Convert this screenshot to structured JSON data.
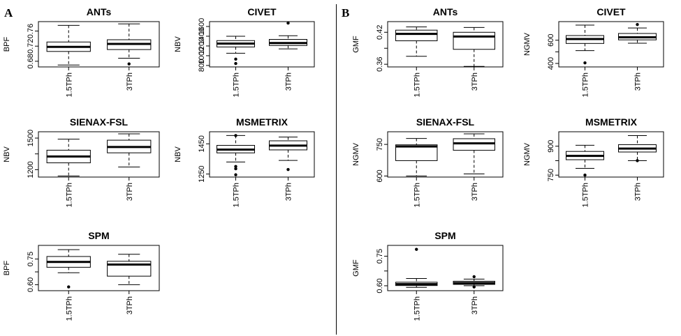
{
  "panels": [
    {
      "label": "A"
    },
    {
      "label": "B"
    }
  ],
  "chart_data": [
    {
      "type": "boxplot",
      "panel": "A",
      "title": "ANTs",
      "ylabel": "BPF",
      "categories": [
        "1.5TPh",
        "3TPh"
      ],
      "yticks": [
        "0.68",
        "0.72",
        "0.76"
      ],
      "ylim": [
        0.665,
        0.785
      ],
      "boxes": [
        {
          "min": 0.67,
          "q1": 0.706,
          "median": 0.718,
          "q3": 0.731,
          "max": 0.775,
          "outliers": []
        },
        {
          "min": 0.688,
          "q1": 0.711,
          "median": 0.726,
          "q3": 0.737,
          "max": 0.779,
          "outliers": [
            0.673
          ]
        }
      ]
    },
    {
      "type": "boxplot",
      "panel": "A",
      "title": "CIVET",
      "ylabel": "NBV",
      "categories": [
        "1.5TPh",
        "3TPh"
      ],
      "yticks": [
        "800",
        "1000",
        "1200",
        "1400",
        "1600"
      ],
      "ylim": [
        770,
        1700
      ],
      "boxes": [
        {
          "min": 1050,
          "q1": 1180,
          "median": 1250,
          "q3": 1310,
          "max": 1400,
          "outliers": [
            930,
            840
          ]
        },
        {
          "min": 1140,
          "q1": 1210,
          "median": 1260,
          "q3": 1335,
          "max": 1410,
          "outliers": [
            1670
          ]
        }
      ]
    },
    {
      "type": "boxplot",
      "panel": "A",
      "title": "SIENAX-FSL",
      "ylabel": "NBV",
      "categories": [
        "1.5TPh",
        "3TPh"
      ],
      "yticks": [
        "1200",
        "",
        "1500"
      ],
      "ylim": [
        1130,
        1560
      ],
      "boxes": [
        {
          "min": 1140,
          "q1": 1265,
          "median": 1325,
          "q3": 1385,
          "max": 1490,
          "outliers": []
        },
        {
          "min": 1225,
          "q1": 1360,
          "median": 1415,
          "q3": 1480,
          "max": 1540,
          "outliers": []
        }
      ]
    },
    {
      "type": "boxplot",
      "panel": "A",
      "title": "MSMETRIX",
      "ylabel": "NBV",
      "categories": [
        "1.5TPh",
        "3TPh"
      ],
      "yticks": [
        "1250",
        "1450"
      ],
      "ylim": [
        1230,
        1530
      ],
      "boxes": [
        {
          "min": 1330,
          "q1": 1390,
          "median": 1412,
          "q3": 1440,
          "max": 1505,
          "outliers": [
            1505,
            1300,
            1285,
            1245
          ]
        },
        {
          "min": 1340,
          "q1": 1410,
          "median": 1438,
          "q3": 1470,
          "max": 1495,
          "outliers": [
            1280
          ]
        }
      ]
    },
    {
      "type": "boxplot",
      "panel": "A",
      "title": "SPM",
      "ylabel": "BPF",
      "categories": [
        "1.5TPh",
        "3TPh"
      ],
      "yticks": [
        "0.60",
        "",
        "0.75"
      ],
      "ylim": [
        0.565,
        0.83
      ],
      "boxes": [
        {
          "min": 0.67,
          "q1": 0.702,
          "median": 0.733,
          "q3": 0.765,
          "max": 0.805,
          "outliers": [
            0.587
          ]
        },
        {
          "min": 0.6,
          "q1": 0.65,
          "median": 0.718,
          "q3": 0.737,
          "max": 0.778,
          "outliers": []
        }
      ]
    },
    {
      "type": "boxplot",
      "panel": "B",
      "title": "ANTs",
      "ylabel": "GMF",
      "categories": [
        "1.5TPh",
        "3TPh"
      ],
      "yticks": [
        "0.36",
        "",
        "0.42"
      ],
      "ylim": [
        0.355,
        0.44
      ],
      "boxes": [
        {
          "min": 0.375,
          "q1": 0.404,
          "median": 0.417,
          "q3": 0.424,
          "max": 0.43,
          "outliers": []
        },
        {
          "min": 0.356,
          "q1": 0.388,
          "median": 0.412,
          "q3": 0.42,
          "max": 0.429,
          "outliers": []
        }
      ]
    },
    {
      "type": "boxplot",
      "panel": "B",
      "title": "CIVET",
      "ylabel": "NGMV",
      "categories": [
        "1.5TPh",
        "3TPh"
      ],
      "yticks": [
        "400",
        "",
        "600"
      ],
      "ylim": [
        370,
        760
      ],
      "boxes": [
        {
          "min": 510,
          "q1": 572,
          "median": 610,
          "q3": 640,
          "max": 730,
          "outliers": [
            405
          ]
        },
        {
          "min": 574,
          "q1": 603,
          "median": 625,
          "q3": 658,
          "max": 705,
          "outliers": [
            735
          ]
        }
      ]
    },
    {
      "type": "boxplot",
      "panel": "B",
      "title": "SIENAX-FSL",
      "ylabel": "NGMV",
      "categories": [
        "1.5TPh",
        "3TPh"
      ],
      "yticks": [
        "600",
        "750"
      ],
      "ylim": [
        595,
        810
      ],
      "boxes": [
        {
          "min": 600,
          "q1": 673,
          "median": 740,
          "q3": 748,
          "max": 778,
          "outliers": []
        },
        {
          "min": 610,
          "q1": 722,
          "median": 755,
          "q3": 777,
          "max": 800,
          "outliers": []
        }
      ]
    },
    {
      "type": "boxplot",
      "panel": "B",
      "title": "MSMETRIX",
      "ylabel": "NGMV",
      "categories": [
        "1.5TPh",
        "3TPh"
      ],
      "yticks": [
        "750",
        "",
        "900"
      ],
      "ylim": [
        740,
        975
      ],
      "boxes": [
        {
          "min": 785,
          "q1": 830,
          "median": 850,
          "q3": 873,
          "max": 905,
          "outliers": [
            750
          ]
        },
        {
          "min": 825,
          "q1": 870,
          "median": 888,
          "q3": 908,
          "max": 955,
          "outliers": [
            825
          ]
        }
      ]
    },
    {
      "type": "boxplot",
      "panel": "B",
      "title": "SPM",
      "ylabel": "GMF",
      "categories": [
        "1.5TPh",
        "3TPh"
      ],
      "yticks": [
        "0.60",
        "",
        "0.75"
      ],
      "ylim": [
        0.575,
        0.805
      ],
      "boxes": [
        {
          "min": 0.592,
          "q1": 0.601,
          "median": 0.608,
          "q3": 0.618,
          "max": 0.637,
          "outliers": [
            0.785
          ]
        },
        {
          "min": 0.6,
          "q1": 0.607,
          "median": 0.614,
          "q3": 0.623,
          "max": 0.634,
          "outliers": [
            0.646,
            0.594
          ]
        }
      ]
    }
  ]
}
